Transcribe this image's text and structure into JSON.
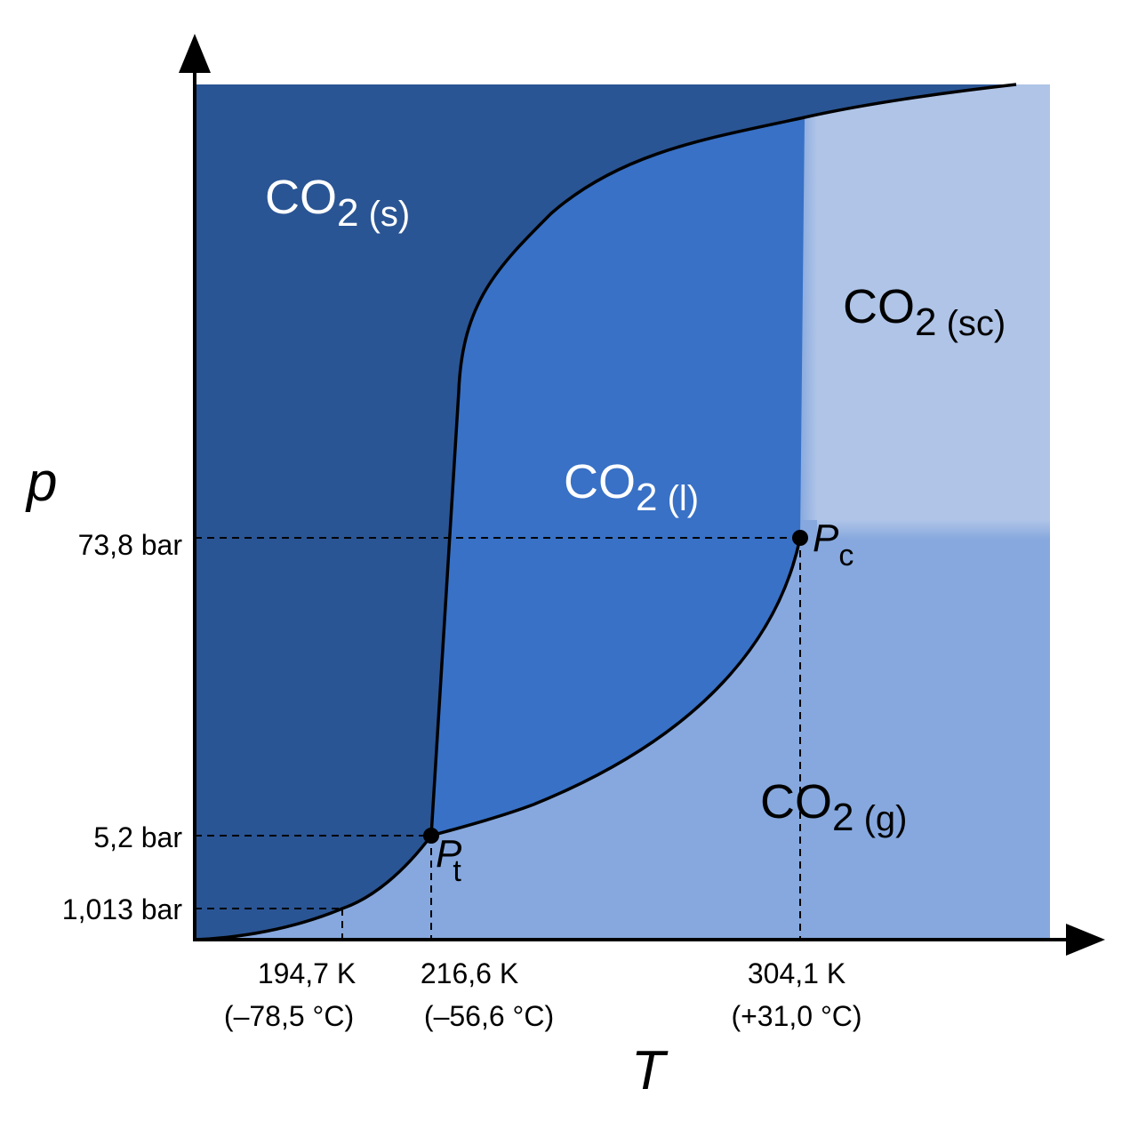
{
  "diagram": {
    "axes": {
      "y_label": "p",
      "x_label": "T"
    },
    "y_ticks": [
      {
        "label": "73,8 bar"
      },
      {
        "label": "5,2 bar"
      },
      {
        "label": "1,013 bar"
      }
    ],
    "x_ticks": [
      {
        "kelvin": "194,7 K",
        "celsius": "(–78,5 °C)"
      },
      {
        "kelvin": "216,6 K",
        "celsius": "(–56,6 °C)"
      },
      {
        "kelvin": "304,1 K",
        "celsius": "(+31,0 °C)"
      }
    ],
    "regions": {
      "solid": {
        "base": "CO",
        "sub": "2",
        "phase": " (s)"
      },
      "liquid": {
        "base": "CO",
        "sub": "2",
        "phase": " (l)"
      },
      "gas": {
        "base": "CO",
        "sub": "2",
        "phase": " (g)"
      },
      "supercritical": {
        "base": "CO",
        "sub": "2",
        "phase": " (sc)"
      }
    },
    "points": {
      "triple": {
        "symbol": "P",
        "sub": "t"
      },
      "critical": {
        "symbol": "P",
        "sub": "c"
      }
    },
    "colors": {
      "solid": "#2a5594",
      "liquid": "#3871c6",
      "gas": "#86a8de",
      "supercritical": "#afc4e7",
      "curve": "#000000",
      "region_text": "#ffffff",
      "axis_text": "#000000"
    }
  }
}
